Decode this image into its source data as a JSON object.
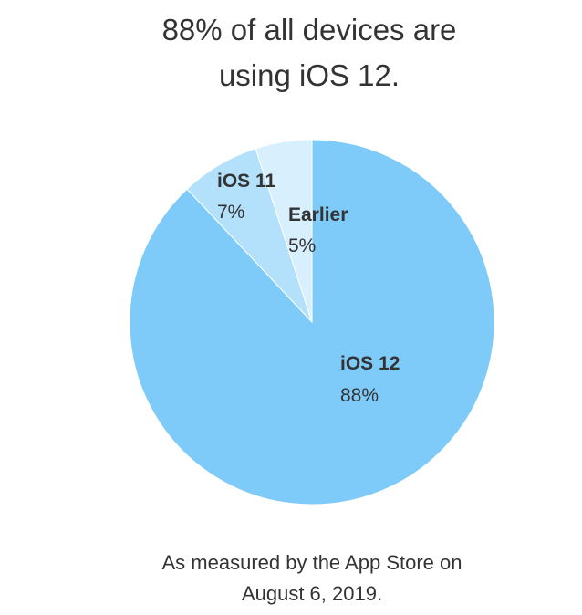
{
  "chart_data": {
    "type": "pie",
    "title": "88% of all devices are using iOS 12.",
    "title_lines": [
      "88% of all devices are",
      "using iOS 12."
    ],
    "slices": [
      {
        "label": "iOS 12",
        "value": 88,
        "value_label": "88%",
        "color": "#7ecbf9"
      },
      {
        "label": "iOS 11",
        "value": 7,
        "value_label": "7%",
        "color": "#b3e1fb"
      },
      {
        "label": "Earlier",
        "value": 5,
        "value_label": "5%",
        "color": "#d8effd"
      }
    ],
    "footnote_lines": [
      "As measured by the App Store on",
      "August 6, 2019."
    ]
  }
}
